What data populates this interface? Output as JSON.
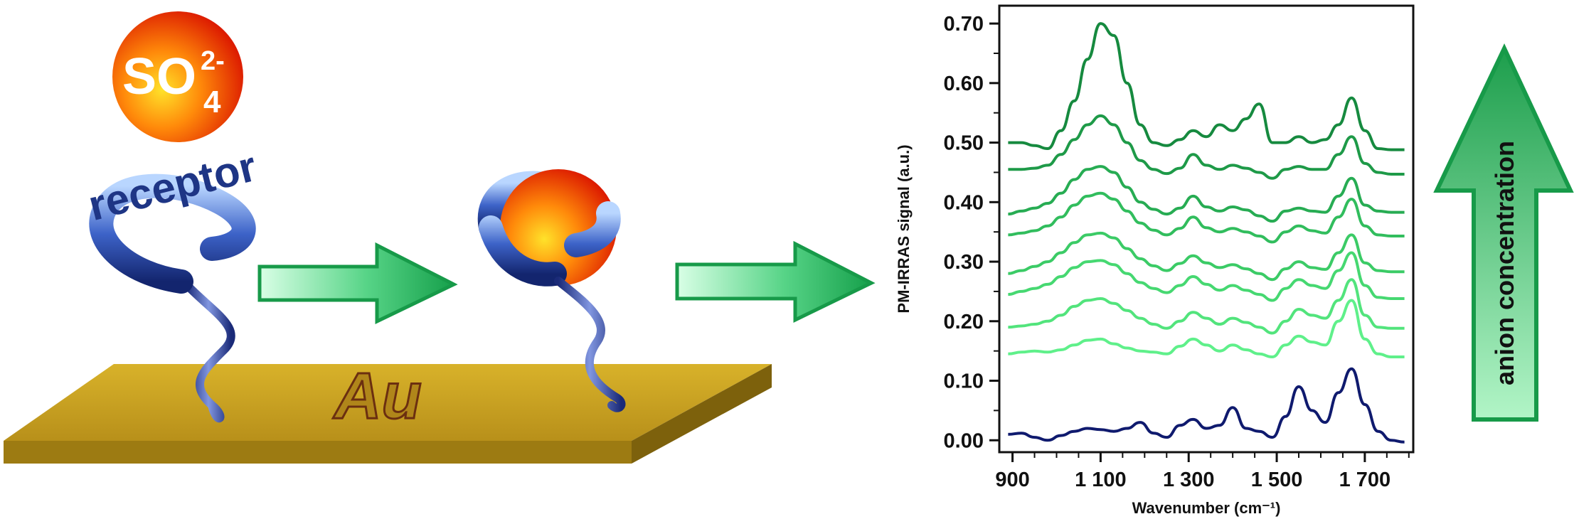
{
  "scheme": {
    "ion_label": "SO",
    "ion_sub": "4",
    "ion_sup": "2-",
    "receptor_label": "receptor",
    "substrate_label": "Au"
  },
  "arrow_label": "anion concentration",
  "colors": {
    "ion_center": "#ffd21f",
    "ion_edge": "#e01e00",
    "receptor": "#1e3585",
    "gold_top": "#c9a21a",
    "arrow_green": "#1a9a4a",
    "baseline_trace": "#0f1a6e"
  },
  "chart_data": {
    "type": "line",
    "xlabel": "Wavenumber (cm⁻¹)",
    "ylabel": "PM-IRRAS signal (a.u.)",
    "xlim": [
      870,
      1810
    ],
    "ylim": [
      -0.02,
      0.73
    ],
    "x_ticks": [
      900,
      1100,
      1300,
      1500,
      1700
    ],
    "x_tick_labels": [
      "900",
      "1 100",
      "1 300",
      "1 500",
      "1 700"
    ],
    "y_ticks": [
      0.0,
      0.1,
      0.2,
      0.3,
      0.4,
      0.5,
      0.6,
      0.7
    ],
    "y_tick_labels": [
      "0.00",
      "0.10",
      "0.20",
      "0.30",
      "0.40",
      "0.50",
      "0.60",
      "0.70"
    ],
    "grid": false,
    "x": [
      890,
      920,
      950,
      980,
      1010,
      1040,
      1070,
      1100,
      1130,
      1160,
      1190,
      1220,
      1250,
      1280,
      1310,
      1340,
      1370,
      1400,
      1430,
      1460,
      1490,
      1520,
      1550,
      1580,
      1610,
      1640,
      1670,
      1700,
      1730,
      1760,
      1790
    ],
    "series": [
      {
        "color": "#0f1a6e",
        "values": [
          0.01,
          0.012,
          0.005,
          0.0,
          0.008,
          0.015,
          0.02,
          0.018,
          0.015,
          0.02,
          0.03,
          0.012,
          0.005,
          0.025,
          0.035,
          0.02,
          0.025,
          0.055,
          0.02,
          0.015,
          0.005,
          0.04,
          0.09,
          0.05,
          0.03,
          0.08,
          0.12,
          0.06,
          0.015,
          0.0,
          -0.003
        ]
      },
      {
        "color": "#5ff08a",
        "values": [
          0.145,
          0.148,
          0.15,
          0.148,
          0.152,
          0.16,
          0.168,
          0.17,
          0.162,
          0.155,
          0.15,
          0.148,
          0.145,
          0.158,
          0.17,
          0.16,
          0.15,
          0.16,
          0.152,
          0.145,
          0.14,
          0.16,
          0.175,
          0.165,
          0.16,
          0.2,
          0.235,
          0.17,
          0.145,
          0.14,
          0.14
        ]
      },
      {
        "color": "#52e47c",
        "values": [
          0.19,
          0.192,
          0.195,
          0.2,
          0.21,
          0.225,
          0.235,
          0.238,
          0.23,
          0.218,
          0.205,
          0.195,
          0.188,
          0.2,
          0.215,
          0.205,
          0.195,
          0.205,
          0.198,
          0.19,
          0.18,
          0.2,
          0.22,
          0.21,
          0.205,
          0.235,
          0.27,
          0.21,
          0.19,
          0.188,
          0.188
        ]
      },
      {
        "color": "#46d871",
        "values": [
          0.245,
          0.25,
          0.255,
          0.262,
          0.275,
          0.29,
          0.3,
          0.302,
          0.295,
          0.28,
          0.265,
          0.255,
          0.248,
          0.26,
          0.275,
          0.262,
          0.252,
          0.26,
          0.252,
          0.245,
          0.235,
          0.255,
          0.27,
          0.26,
          0.255,
          0.285,
          0.315,
          0.26,
          0.24,
          0.238,
          0.238
        ]
      },
      {
        "color": "#3bcb66",
        "values": [
          0.28,
          0.285,
          0.292,
          0.3,
          0.315,
          0.332,
          0.345,
          0.348,
          0.34,
          0.322,
          0.305,
          0.293,
          0.285,
          0.297,
          0.31,
          0.298,
          0.29,
          0.295,
          0.288,
          0.28,
          0.27,
          0.288,
          0.3,
          0.29,
          0.287,
          0.315,
          0.345,
          0.298,
          0.285,
          0.283,
          0.283
        ]
      },
      {
        "color": "#31bd5d",
        "values": [
          0.345,
          0.348,
          0.352,
          0.36,
          0.375,
          0.395,
          0.41,
          0.415,
          0.405,
          0.385,
          0.365,
          0.353,
          0.345,
          0.356,
          0.375,
          0.357,
          0.35,
          0.356,
          0.35,
          0.343,
          0.333,
          0.35,
          0.36,
          0.352,
          0.348,
          0.375,
          0.405,
          0.36,
          0.345,
          0.343,
          0.343
        ]
      },
      {
        "color": "#27ac53",
        "values": [
          0.38,
          0.385,
          0.39,
          0.398,
          0.415,
          0.438,
          0.455,
          0.46,
          0.45,
          0.425,
          0.4,
          0.388,
          0.38,
          0.39,
          0.41,
          0.392,
          0.385,
          0.392,
          0.387,
          0.377,
          0.368,
          0.385,
          0.39,
          0.385,
          0.383,
          0.41,
          0.44,
          0.395,
          0.385,
          0.383,
          0.383
        ]
      },
      {
        "color": "#1e9a48",
        "values": [
          0.455,
          0.455,
          0.457,
          0.462,
          0.48,
          0.505,
          0.53,
          0.545,
          0.53,
          0.5,
          0.47,
          0.455,
          0.448,
          0.457,
          0.48,
          0.462,
          0.455,
          0.462,
          0.457,
          0.45,
          0.44,
          0.455,
          0.46,
          0.455,
          0.455,
          0.48,
          0.51,
          0.465,
          0.45,
          0.447,
          0.447
        ]
      },
      {
        "color": "#168a3f",
        "values": [
          0.5,
          0.5,
          0.495,
          0.49,
          0.52,
          0.57,
          0.64,
          0.7,
          0.68,
          0.6,
          0.53,
          0.5,
          0.495,
          0.505,
          0.52,
          0.51,
          0.53,
          0.52,
          0.54,
          0.565,
          0.5,
          0.5,
          0.51,
          0.5,
          0.505,
          0.53,
          0.575,
          0.52,
          0.49,
          0.488,
          0.488
        ]
      }
    ]
  }
}
